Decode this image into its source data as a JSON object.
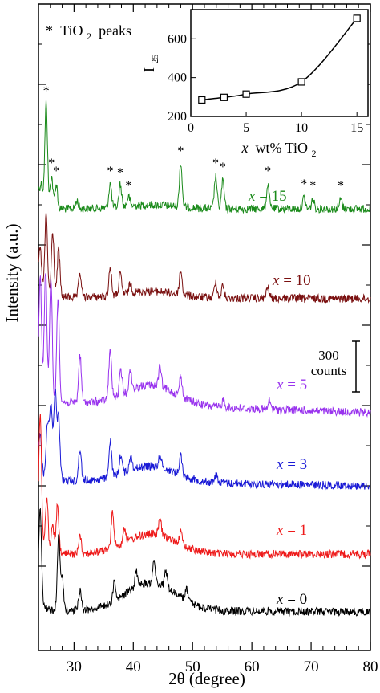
{
  "chart_data": [
    {
      "type": "line",
      "xlabel": "2θ (degree)",
      "ylabel": "Intensity (a.u.)",
      "xlim": [
        24,
        80
      ],
      "x_ticks": [
        30,
        40,
        50,
        60,
        70,
        80
      ],
      "y_tick_labels": "none",
      "legend_note_star": "*",
      "legend_note_text": "TiO",
      "legend_note_sub": "2",
      "legend_note_tail": " peaks",
      "scale_bar_value": "300",
      "scale_bar_unit": "counts",
      "colors": {
        "x15": "#1a8a1a",
        "x10": "#7a1010",
        "x5": "#9933ee",
        "x3": "#1a1ad6",
        "x1": "#ee1a1a",
        "x0": "#000000"
      },
      "series_labels": [
        {
          "id": "x15",
          "prefix": "x",
          "text": " = 15"
        },
        {
          "id": "x10",
          "prefix": "x",
          "text": " = 10"
        },
        {
          "id": "x5",
          "prefix": "x",
          "text": " = 5"
        },
        {
          "id": "x3",
          "prefix": "x",
          "text": " = 3"
        },
        {
          "id": "x1",
          "prefix": "x",
          "text": " = 1"
        },
        {
          "id": "x0",
          "prefix": "x",
          "text": " = 0"
        }
      ],
      "series": [
        {
          "id": "x15",
          "baseline": 260,
          "end_level": 260,
          "peaks": [
            [
              24.5,
              20
            ],
            [
              25.3,
              130
            ],
            [
              26.2,
              40
            ],
            [
              27.0,
              30
            ],
            [
              30.5,
              10
            ],
            [
              36.1,
              30
            ],
            [
              37.8,
              28
            ],
            [
              39.2,
              12
            ],
            [
              48.0,
              55
            ],
            [
              53.9,
              40
            ],
            [
              55.1,
              35
            ],
            [
              62.7,
              30
            ],
            [
              68.8,
              14
            ],
            [
              70.3,
              12
            ],
            [
              75.0,
              12
            ]
          ],
          "hump": 5
        },
        {
          "id": "x10",
          "baseline": 370,
          "end_level": 372,
          "peaks": [
            [
              24.3,
              45
            ],
            [
              25.3,
              100
            ],
            [
              26.4,
              80
            ],
            [
              27.4,
              60
            ],
            [
              31.0,
              30
            ],
            [
              36.1,
              35
            ],
            [
              37.8,
              25
            ],
            [
              39.5,
              12
            ],
            [
              48.0,
              30
            ],
            [
              53.9,
              20
            ],
            [
              55.1,
              15
            ],
            [
              62.7,
              14
            ]
          ],
          "hump": 8
        },
        {
          "id": "x5",
          "baseline": 500,
          "end_level": 514,
          "peaks": [
            [
              24.3,
              140
            ],
            [
              25.2,
              160
            ],
            [
              26.1,
              150
            ],
            [
              27.3,
              130
            ],
            [
              31.0,
              60
            ],
            [
              36.1,
              60
            ],
            [
              37.9,
              30
            ],
            [
              39.5,
              25
            ],
            [
              44.5,
              25
            ],
            [
              48.0,
              25
            ],
            [
              55.2,
              10
            ],
            [
              63.0,
              10
            ]
          ],
          "hump": 25
        },
        {
          "id": "x3",
          "baseline": 598,
          "end_level": 605,
          "peaks": [
            [
              24.3,
              45
            ],
            [
              25.5,
              70
            ],
            [
              26.1,
              95
            ],
            [
              26.8,
              110
            ],
            [
              27.4,
              80
            ],
            [
              31.0,
              40
            ],
            [
              36.1,
              45
            ],
            [
              37.9,
              25
            ],
            [
              39.6,
              20
            ],
            [
              44.5,
              15
            ],
            [
              48.0,
              25
            ],
            [
              54.0,
              10
            ]
          ],
          "hump": 20
        },
        {
          "id": "x1",
          "baseline": 690,
          "end_level": 690,
          "peaks": [
            [
              24.3,
              160
            ],
            [
              25.4,
              70
            ],
            [
              26.4,
              35
            ],
            [
              27.2,
              60
            ],
            [
              31.0,
              25
            ],
            [
              36.5,
              45
            ],
            [
              38.5,
              20
            ],
            [
              44.5,
              20
            ],
            [
              48.0,
              15
            ]
          ],
          "hump": 25
        },
        {
          "id": "x0",
          "baseline": 760,
          "end_level": 762,
          "peaks": [
            [
              24.3,
              110
            ],
            [
              27.4,
              90
            ],
            [
              28.0,
              40
            ],
            [
              31.0,
              25
            ],
            [
              36.8,
              25
            ],
            [
              40.5,
              20
            ],
            [
              43.5,
              25
            ],
            [
              45.5,
              20
            ],
            [
              49.0,
              15
            ]
          ],
          "hump": 35
        }
      ],
      "asterisks": [
        {
          "x": 25.3,
          "series": "x15"
        },
        {
          "x": 26.2,
          "series": "x15"
        },
        {
          "x": 27.0,
          "series": "x15"
        },
        {
          "x": 36.1,
          "series": "x15"
        },
        {
          "x": 37.8,
          "series": "x15"
        },
        {
          "x": 39.2,
          "series": "x15"
        },
        {
          "x": 48.0,
          "series": "x15"
        },
        {
          "x": 53.9,
          "series": "x15"
        },
        {
          "x": 55.1,
          "series": "x15"
        },
        {
          "x": 62.7,
          "series": "x15"
        },
        {
          "x": 68.8,
          "series": "x15"
        },
        {
          "x": 70.3,
          "series": "x15"
        },
        {
          "x": 75.0,
          "series": "x15"
        }
      ]
    },
    {
      "type": "line",
      "xlabel_prefix": "x",
      "xlabel_text": " wt% TiO",
      "xlabel_sub": "2",
      "ylabel_main": "I",
      "ylabel_sub": "25",
      "xlim": [
        0,
        16
      ],
      "ylim": [
        200,
        750
      ],
      "x_ticks": [
        0,
        5,
        10,
        15
      ],
      "y_ticks": [
        200,
        400,
        600
      ],
      "x": [
        1,
        3,
        5,
        10,
        15
      ],
      "values": [
        285,
        298,
        315,
        378,
        705
      ]
    }
  ]
}
